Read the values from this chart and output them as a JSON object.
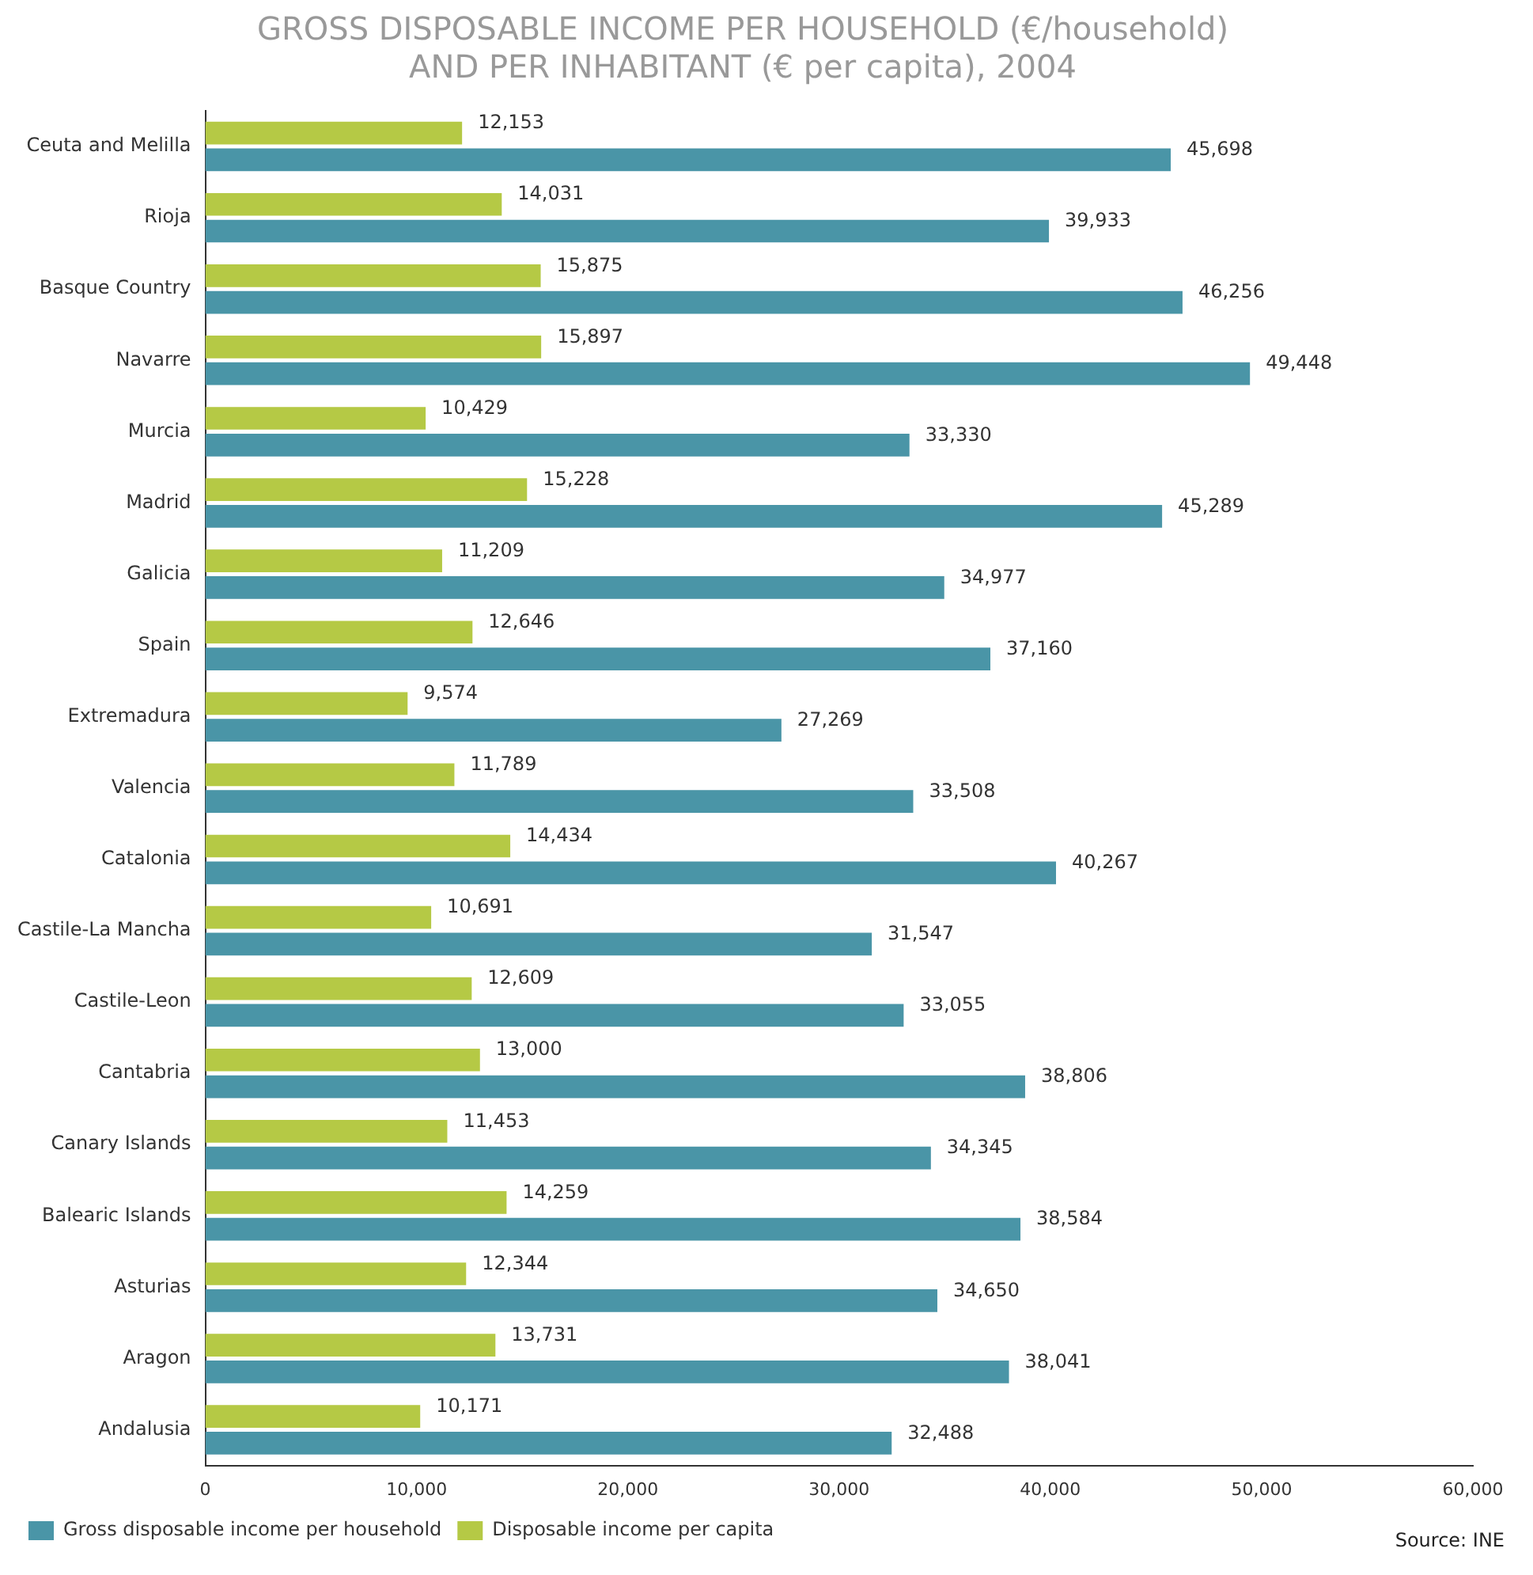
{
  "chart_data": {
    "type": "bar",
    "orientation": "horizontal",
    "title": [
      "GROSS DISPOSABLE INCOME PER HOUSEHOLD (€/household)",
      "AND PER INHABITANT (€ per capita), 2004"
    ],
    "categories": [
      "Ceuta and Melilla",
      "Rioja",
      "Basque Country",
      "Navarre",
      "Murcia",
      "Madrid",
      "Galicia",
      "Spain",
      "Extremadura",
      "Valencia",
      "Catalonia",
      "Castile-La Mancha",
      "Castile-Leon",
      "Cantabria",
      "Canary Islands",
      "Balearic Islands",
      "Asturias",
      "Aragon",
      "Andalusia"
    ],
    "series": [
      {
        "name": "Disposable income per capita",
        "color": "#b5c945",
        "values": [
          12153,
          14031,
          15875,
          15897,
          10429,
          15228,
          11209,
          12646,
          9574,
          11789,
          14434,
          10691,
          12609,
          13000,
          11453,
          14259,
          12344,
          13731,
          10171
        ],
        "value_labels": [
          "12,153",
          "14,031",
          "15,875",
          "15,897",
          "10,429",
          "15,228",
          "11,209",
          "12,646",
          "9,574",
          "11,789",
          "14,434",
          "10,691",
          "12,609",
          "13,000",
          "11,453",
          "14,259",
          "12,344",
          "13,731",
          "10,171"
        ]
      },
      {
        "name": "Gross disposable income per household",
        "color": "#4a95a7",
        "values": [
          45698,
          39933,
          46256,
          49448,
          33330,
          45289,
          34977,
          37160,
          27269,
          33508,
          40267,
          31547,
          33055,
          38806,
          34345,
          38584,
          34650,
          38041,
          32488
        ],
        "value_labels": [
          "45,698",
          "39,933",
          "46,256",
          "49,448",
          "33,330",
          "45,289",
          "34,977",
          "37,160",
          "27,269",
          "33,508",
          "40,267",
          "31,547",
          "33,055",
          "38,806",
          "34,345",
          "38,584",
          "34,650",
          "38,041",
          "32,488"
        ]
      }
    ],
    "xlim": [
      0,
      60000
    ],
    "xticks": [
      0,
      {
        "value": 10000,
        "label": "10,000"
      },
      {
        "value": 20000,
        "label": "20,000"
      },
      {
        "value": 30000,
        "label": "30,000"
      },
      {
        "value": 40000,
        "label": "40,000"
      },
      {
        "value": 50000,
        "label": "50,000"
      },
      {
        "value": 60000,
        "label": "60,000"
      }
    ],
    "grid": false,
    "legend": "bottom left",
    "annotations": [
      "Source: INE"
    ]
  }
}
